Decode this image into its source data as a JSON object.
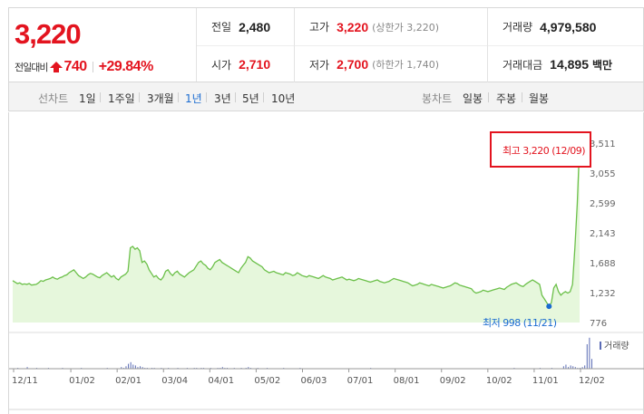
{
  "summary": {
    "current_price": "3,220",
    "change_label": "전일대비",
    "change_icon": "up-triangle-icon",
    "change_value": "740",
    "change_rate": "+29.84%",
    "prev_close": {
      "label": "전일",
      "value": "2,480"
    },
    "high": {
      "label": "고가",
      "value": "3,220",
      "sub": "(상한가 3,220)"
    },
    "volume": {
      "label": "거래량",
      "value": "4,979,580"
    },
    "open": {
      "label": "시가",
      "value": "2,710"
    },
    "low": {
      "label": "저가",
      "value": "2,700",
      "sub": "(하한가 1,740)"
    },
    "amount": {
      "label": "거래대금",
      "value": "14,895",
      "sub": "백만"
    }
  },
  "tabs": {
    "line_label": "선차트",
    "line_tabs": [
      "1일",
      "1주일",
      "3개월",
      "1년",
      "3년",
      "5년",
      "10년"
    ],
    "active": "1년",
    "candle_label": "봉차트",
    "candle_tabs": [
      "일봉",
      "주봉",
      "월봉"
    ]
  },
  "colors": {
    "up": "#e3141f",
    "accent": "#1a6bd0",
    "line": "#6cc04a",
    "fill": "#e6f7dc"
  },
  "chart_data": {
    "type": "area",
    "y_ticks": [
      "3,511",
      "3,055",
      "2,599",
      "2,143",
      "1,688",
      "1,232",
      "776"
    ],
    "ylim": [
      776,
      3511
    ],
    "x_ticks": [
      "12/11",
      "01/02",
      "02/01",
      "03/04",
      "04/01",
      "05/02",
      "06/03",
      "07/01",
      "08/01",
      "09/02",
      "10/02",
      "11/01",
      "12/02"
    ],
    "max_annotation": "최고 3,220 (12/09)",
    "min_annotation": "최저 998 (11/21)",
    "volume_label": "거래량",
    "price_series": [
      1350,
      1330,
      1310,
      1320,
      1300,
      1305,
      1300,
      1310,
      1290,
      1295,
      1300,
      1320,
      1350,
      1340,
      1360,
      1370,
      1380,
      1400,
      1380,
      1370,
      1390,
      1400,
      1420,
      1430,
      1460,
      1480,
      1500,
      1460,
      1420,
      1400,
      1380,
      1400,
      1430,
      1450,
      1440,
      1420,
      1400,
      1390,
      1420,
      1440,
      1460,
      1430,
      1400,
      1420,
      1380,
      1360,
      1400,
      1420,
      1440,
      1480,
      1800,
      1820,
      1780,
      1800,
      1760,
      1600,
      1620,
      1580,
      1500,
      1450,
      1400,
      1420,
      1380,
      1360,
      1400,
      1480,
      1500,
      1450,
      1420,
      1460,
      1480,
      1440,
      1420,
      1400,
      1430,
      1460,
      1480,
      1500,
      1550,
      1600,
      1620,
      1580,
      1560,
      1520,
      1500,
      1540,
      1600,
      1620,
      1640,
      1600,
      1580,
      1560,
      1540,
      1520,
      1500,
      1480,
      1460,
      1520,
      1560,
      1600,
      1680,
      1660,
      1620,
      1600,
      1580,
      1560,
      1540,
      1500,
      1480,
      1460,
      1470,
      1480,
      1460,
      1450,
      1440,
      1430,
      1460,
      1450,
      1440,
      1420,
      1430,
      1460,
      1440,
      1420,
      1410,
      1400,
      1420,
      1410,
      1400,
      1390,
      1380,
      1400,
      1420,
      1400,
      1390,
      1380,
      1360,
      1370,
      1380,
      1390,
      1400,
      1380,
      1360,
      1370,
      1360,
      1350,
      1360,
      1380,
      1370,
      1360,
      1350,
      1340,
      1330,
      1340,
      1350,
      1360,
      1340,
      1330,
      1320,
      1330,
      1340,
      1360,
      1380,
      1370,
      1360,
      1350,
      1340,
      1330,
      1320,
      1300,
      1280,
      1290,
      1300,
      1320,
      1310,
      1300,
      1290,
      1280,
      1300,
      1290,
      1280,
      1270,
      1260,
      1250,
      1260,
      1270,
      1280,
      1300,
      1320,
      1310,
      1290,
      1280,
      1270,
      1260,
      1250,
      1240,
      1200,
      1180,
      1190,
      1200,
      1220,
      1210,
      1200,
      1210,
      1220,
      1230,
      1240,
      1250,
      1240,
      1230,
      1260,
      1280,
      1300,
      1310,
      1320,
      1300,
      1280,
      1270,
      1300,
      1320,
      1340,
      1360,
      1340,
      1320,
      1300,
      1150,
      1100,
      1050,
      998,
      1050,
      1250,
      1300,
      1200,
      1150,
      1180,
      1200,
      1180,
      1200,
      1300,
      1800,
      2400,
      3220
    ],
    "volume_series": [
      0,
      0,
      1,
      0,
      0,
      0,
      2,
      0,
      0,
      0,
      1,
      0,
      0,
      0,
      0,
      1,
      0,
      0,
      0,
      0,
      0,
      1,
      0,
      0,
      0,
      0,
      0,
      0,
      0,
      1,
      0,
      0,
      0,
      0,
      0,
      0,
      0,
      0,
      0,
      0,
      1,
      0,
      0,
      0,
      0,
      0,
      2,
      1,
      3,
      6,
      8,
      5,
      4,
      2,
      3,
      2,
      1,
      1,
      0,
      1,
      1,
      0,
      0,
      1,
      0,
      0,
      1,
      0,
      0,
      0,
      1,
      0,
      0,
      0,
      1,
      0,
      0,
      1,
      1,
      0,
      1,
      1,
      0,
      0,
      1,
      0,
      0,
      1,
      1,
      2,
      1,
      1,
      0,
      0,
      1,
      0,
      0,
      1,
      0,
      1,
      2,
      1,
      0,
      0,
      1,
      0,
      0,
      0,
      1,
      0,
      0,
      0,
      0,
      0,
      0,
      1,
      0,
      0,
      0,
      0,
      0,
      0,
      1,
      0,
      0,
      0,
      0,
      0,
      0,
      0,
      0,
      0,
      0,
      0,
      0,
      0,
      0,
      0,
      0,
      0,
      0,
      0,
      0,
      0,
      0,
      0,
      0,
      0,
      0,
      0,
      0,
      0,
      1,
      0,
      0,
      0,
      0,
      0,
      0,
      0,
      0,
      0,
      0,
      0,
      0,
      0,
      0,
      0,
      0,
      0,
      0,
      0,
      0,
      0,
      0,
      0,
      0,
      0,
      0,
      0,
      0,
      0,
      0,
      0,
      0,
      0,
      0,
      0,
      0,
      0,
      0,
      0,
      0,
      0,
      0,
      0,
      0,
      0,
      0,
      0,
      0,
      0,
      0,
      0,
      0,
      0,
      0,
      0,
      0,
      0,
      0,
      0,
      0,
      1,
      0,
      0,
      0,
      0,
      0,
      0,
      0,
      0,
      0,
      0,
      1,
      0,
      0,
      0,
      0,
      1,
      0,
      0,
      0,
      0,
      3,
      5,
      2,
      4,
      3,
      2,
      1,
      1,
      2,
      4,
      30,
      38,
      12
    ]
  }
}
